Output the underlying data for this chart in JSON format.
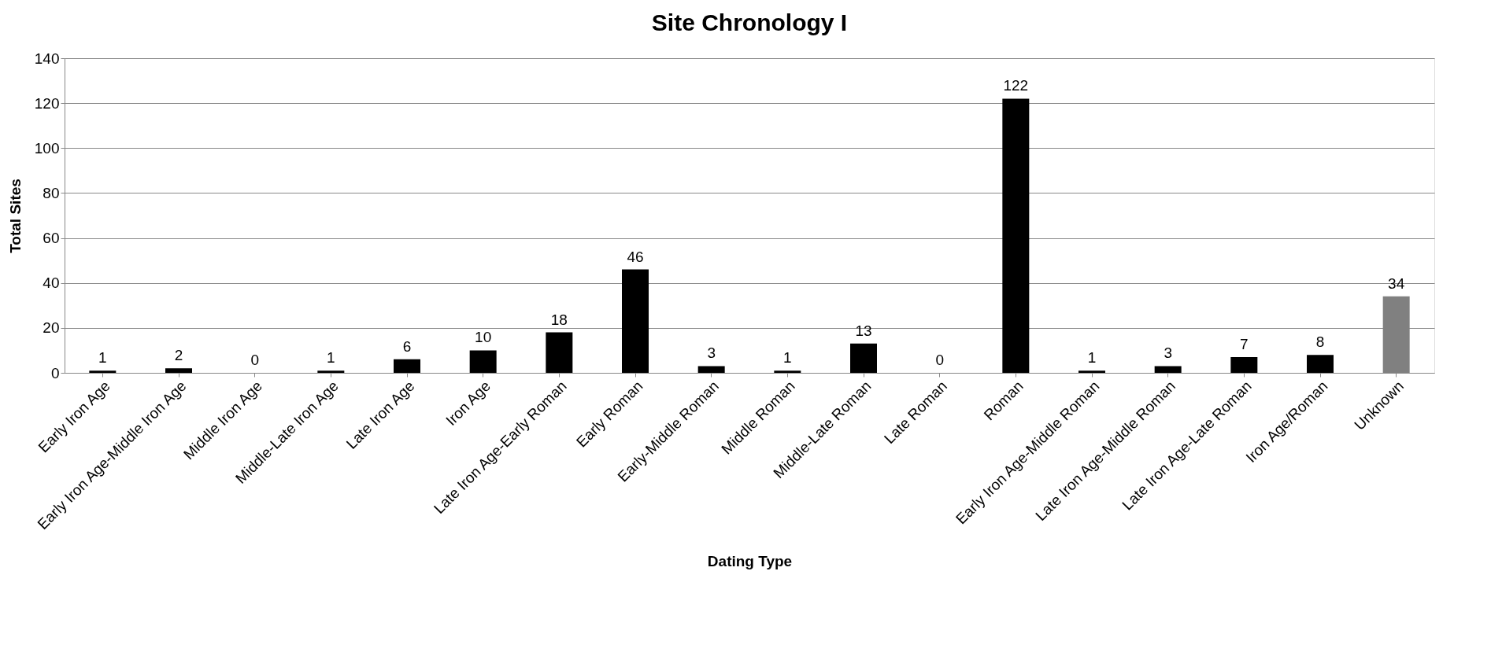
{
  "chart_data": {
    "type": "bar",
    "title": "Site Chronology I",
    "xlabel": "Dating Type",
    "ylabel": "Total Sites",
    "categories": [
      "Early Iron Age",
      "Early Iron Age-Middle Iron Age",
      "Middle Iron Age",
      "Middle-Late Iron Age",
      "Late Iron Age",
      "Iron Age",
      "Late Iron Age-Early Roman",
      "Early Roman",
      "Early-Middle Roman",
      "Middle Roman",
      "Middle-Late Roman",
      "Late Roman",
      "Roman",
      "Early Iron Age-Middle Roman",
      "Late Iron Age-Middle Roman",
      "Late Iron Age-Late Roman",
      "Iron Age/Roman",
      "Unknown"
    ],
    "values": [
      1,
      2,
      0,
      1,
      6,
      10,
      18,
      46,
      3,
      1,
      13,
      0,
      122,
      1,
      3,
      7,
      8,
      34
    ],
    "colors": [
      "#000000",
      "#000000",
      "#000000",
      "#000000",
      "#000000",
      "#000000",
      "#000000",
      "#000000",
      "#000000",
      "#000000",
      "#000000",
      "#000000",
      "#000000",
      "#000000",
      "#000000",
      "#000000",
      "#000000",
      "#808080"
    ],
    "ylim": [
      0,
      140
    ],
    "yticks": [
      0,
      20,
      40,
      60,
      80,
      100,
      120,
      140
    ],
    "grid": "y",
    "data_labels": true
  }
}
